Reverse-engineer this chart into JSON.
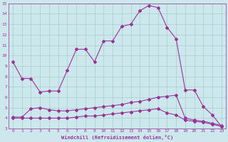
{
  "xlabel": "Windchill (Refroidissement éolien,°C)",
  "bg_color": "#cce8ec",
  "grid_color": "#aacccc",
  "line_color": "#993399",
  "xlim": [
    -0.5,
    23.5
  ],
  "ylim": [
    3,
    15
  ],
  "xticks": [
    0,
    1,
    2,
    3,
    4,
    5,
    6,
    7,
    8,
    9,
    10,
    11,
    12,
    13,
    14,
    15,
    16,
    17,
    18,
    19,
    20,
    21,
    22,
    23
  ],
  "yticks": [
    3,
    4,
    5,
    6,
    7,
    8,
    9,
    10,
    11,
    12,
    13,
    14,
    15
  ],
  "line1_x": [
    0,
    1,
    2,
    3,
    4,
    5,
    6,
    7,
    8,
    9,
    10,
    11,
    12,
    13,
    14,
    15,
    16,
    17,
    18,
    19,
    20,
    21,
    22,
    23
  ],
  "line1_y": [
    9.4,
    7.8,
    7.8,
    6.5,
    6.6,
    6.6,
    8.6,
    10.6,
    10.6,
    9.4,
    11.4,
    11.4,
    12.8,
    13.0,
    14.3,
    14.8,
    14.6,
    12.7,
    11.6,
    6.7,
    6.7,
    5.1,
    4.3,
    3.2
  ],
  "line2_x": [
    0,
    1,
    2,
    3,
    4,
    5,
    6,
    7,
    8,
    9,
    10,
    11,
    12,
    13,
    14,
    15,
    16,
    17,
    18,
    19,
    20,
    21,
    22,
    23
  ],
  "line2_y": [
    4.1,
    4.1,
    4.9,
    5.0,
    4.8,
    4.7,
    4.7,
    4.8,
    4.9,
    5.0,
    5.1,
    5.2,
    5.3,
    5.5,
    5.6,
    5.8,
    6.0,
    6.1,
    6.2,
    4.0,
    3.8,
    3.7,
    3.5,
    3.3
  ],
  "line3_x": [
    0,
    1,
    2,
    3,
    4,
    5,
    6,
    7,
    8,
    9,
    10,
    11,
    12,
    13,
    14,
    15,
    16,
    17,
    18,
    19,
    20,
    21,
    22,
    23
  ],
  "line3_y": [
    4.0,
    4.0,
    4.0,
    4.0,
    4.0,
    4.0,
    4.0,
    4.1,
    4.2,
    4.2,
    4.3,
    4.4,
    4.5,
    4.6,
    4.7,
    4.8,
    4.9,
    4.5,
    4.3,
    3.8,
    3.7,
    3.6,
    3.4,
    3.2
  ],
  "tick_fontsize": 4.5,
  "xlabel_fontsize": 5.0
}
